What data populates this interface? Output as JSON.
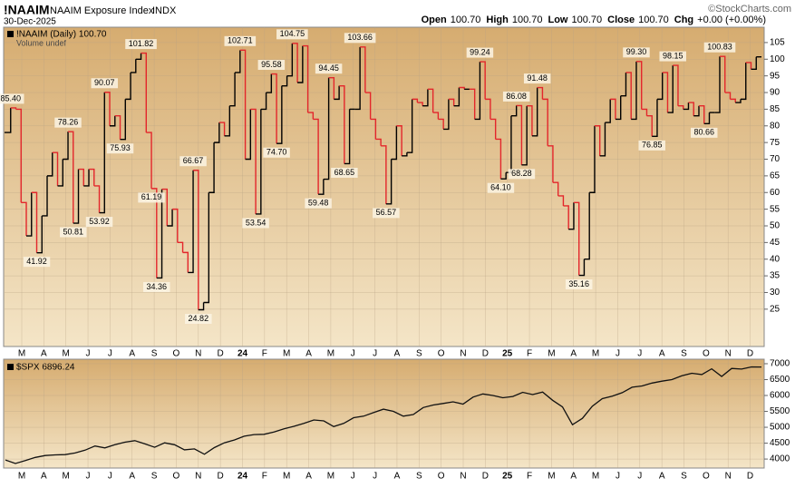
{
  "header": {
    "symbol": "!NAAIM",
    "name": "NAAIM Exposure Index",
    "exchange": "INDX",
    "date": "30-Dec-2025",
    "quote": [
      {
        "label": "Open",
        "value": "100.70"
      },
      {
        "label": "High",
        "value": "100.70"
      },
      {
        "label": "Low",
        "value": "100.70"
      },
      {
        "label": "Close",
        "value": "100.70"
      },
      {
        "label": "Chg",
        "value": "+0.00 (+0.00%)"
      }
    ],
    "brand": "©StockCharts.com"
  },
  "chart_data": [
    {
      "type": "line",
      "step": true,
      "legend": "!NAAIM (Daily) 100.70",
      "legend_note": "Volume undef",
      "up_color": "#000000",
      "down_color": "#e3262b",
      "grid": true,
      "ylim": [
        13.8,
        109.6
      ],
      "yticks": [
        25,
        30,
        35,
        40,
        45,
        50,
        55,
        60,
        65,
        70,
        75,
        80,
        85,
        90,
        95,
        100,
        105
      ],
      "month_labels": [
        "M",
        "A",
        "M",
        "J",
        "J",
        "A",
        "S",
        "O",
        "N",
        "D",
        "24",
        "F",
        "M",
        "A",
        "M",
        "J",
        "J",
        "A",
        "S",
        "O",
        "N",
        "D",
        "25",
        "F",
        "M",
        "A",
        "M",
        "J",
        "J",
        "A",
        "S",
        "O",
        "N",
        "D"
      ],
      "values": [
        78,
        85.4,
        85,
        57,
        47,
        60,
        41.92,
        53,
        65,
        72,
        62,
        70,
        78.26,
        50.81,
        67,
        62,
        67,
        62,
        53.92,
        90.07,
        80,
        83,
        75.93,
        88,
        96,
        100,
        101.82,
        78,
        61.19,
        34.36,
        61,
        50,
        55,
        45,
        42,
        36,
        66.67,
        24.82,
        27,
        60,
        75,
        81,
        77,
        86,
        96,
        102.71,
        70,
        85,
        53.54,
        85,
        90,
        95.58,
        74.7,
        92,
        95,
        104.75,
        93,
        104,
        84,
        82,
        59.48,
        64,
        94.45,
        88,
        92,
        68.65,
        85,
        85,
        103.66,
        90,
        82,
        76,
        74,
        56.57,
        70,
        80,
        71,
        72,
        88,
        87,
        86,
        91,
        84,
        82,
        79,
        88,
        86,
        91.5,
        91,
        91,
        82,
        99.24,
        88,
        82,
        76,
        64.1,
        66,
        83,
        86.08,
        68.28,
        86,
        77,
        91.48,
        88,
        74,
        63,
        59,
        56,
        49,
        57,
        35.16,
        40,
        60,
        80,
        71,
        81,
        88,
        82,
        89,
        96,
        82,
        99.3,
        85,
        83,
        76.85,
        88,
        96,
        84,
        98.15,
        86,
        85,
        87,
        83,
        86,
        80.66,
        84,
        84,
        100.83,
        90,
        88,
        87,
        88,
        99,
        97,
        100.7,
        100.7
      ],
      "value_labels": [
        null,
        "85.40",
        null,
        null,
        null,
        null,
        "41.92",
        null,
        null,
        null,
        null,
        null,
        "78.26",
        "50.81",
        null,
        null,
        null,
        null,
        "53.92",
        "90.07",
        null,
        null,
        "75.93",
        null,
        null,
        null,
        "101.82",
        null,
        "61.19",
        "34.36",
        null,
        null,
        null,
        null,
        null,
        null,
        "66.67",
        "24.82",
        null,
        null,
        null,
        null,
        null,
        null,
        null,
        "102.71",
        null,
        null,
        "53.54",
        null,
        null,
        "95.58",
        "74.70",
        null,
        null,
        "104.75",
        null,
        null,
        null,
        null,
        "59.48",
        null,
        "94.45",
        null,
        null,
        "68.65",
        null,
        null,
        "103.66",
        null,
        null,
        null,
        null,
        "56.57",
        null,
        null,
        null,
        null,
        null,
        null,
        null,
        null,
        null,
        null,
        null,
        null,
        null,
        null,
        null,
        null,
        null,
        "99.24",
        null,
        null,
        null,
        "64.10",
        null,
        null,
        "86.08",
        "68.28",
        null,
        null,
        "91.48",
        null,
        null,
        null,
        null,
        null,
        null,
        null,
        "35.16",
        null,
        null,
        null,
        null,
        null,
        null,
        null,
        null,
        null,
        null,
        "99.30",
        null,
        null,
        "76.85",
        null,
        null,
        null,
        "98.15",
        null,
        null,
        null,
        null,
        null,
        "80.66",
        null,
        null,
        "100.83",
        null,
        null,
        null,
        null,
        null,
        null,
        null,
        null
      ]
    },
    {
      "type": "line",
      "legend": "$SPX 6896.24",
      "color": "#111111",
      "grid": true,
      "ylim": [
        3717,
        7142
      ],
      "yticks": [
        4000,
        4500,
        5000,
        5500,
        6000,
        6500,
        7000
      ],
      "values": [
        3970,
        3860,
        3950,
        4050,
        4110,
        4130,
        4140,
        4190,
        4280,
        4410,
        4350,
        4450,
        4530,
        4580,
        4480,
        4370,
        4510,
        4450,
        4290,
        4320,
        4150,
        4360,
        4510,
        4600,
        4720,
        4770,
        4780,
        4850,
        4950,
        5030,
        5120,
        5230,
        5200,
        5020,
        5120,
        5300,
        5350,
        5460,
        5570,
        5500,
        5350,
        5400,
        5620,
        5700,
        5750,
        5800,
        5730,
        5950,
        6050,
        6000,
        5930,
        5970,
        6100,
        6030,
        6110,
        5850,
        5640,
        5080,
        5280,
        5660,
        5900,
        5980,
        6090,
        6260,
        6300,
        6390,
        6450,
        6500,
        6620,
        6700,
        6660,
        6840,
        6600,
        6850,
        6830,
        6900,
        6896.24
      ]
    }
  ]
}
